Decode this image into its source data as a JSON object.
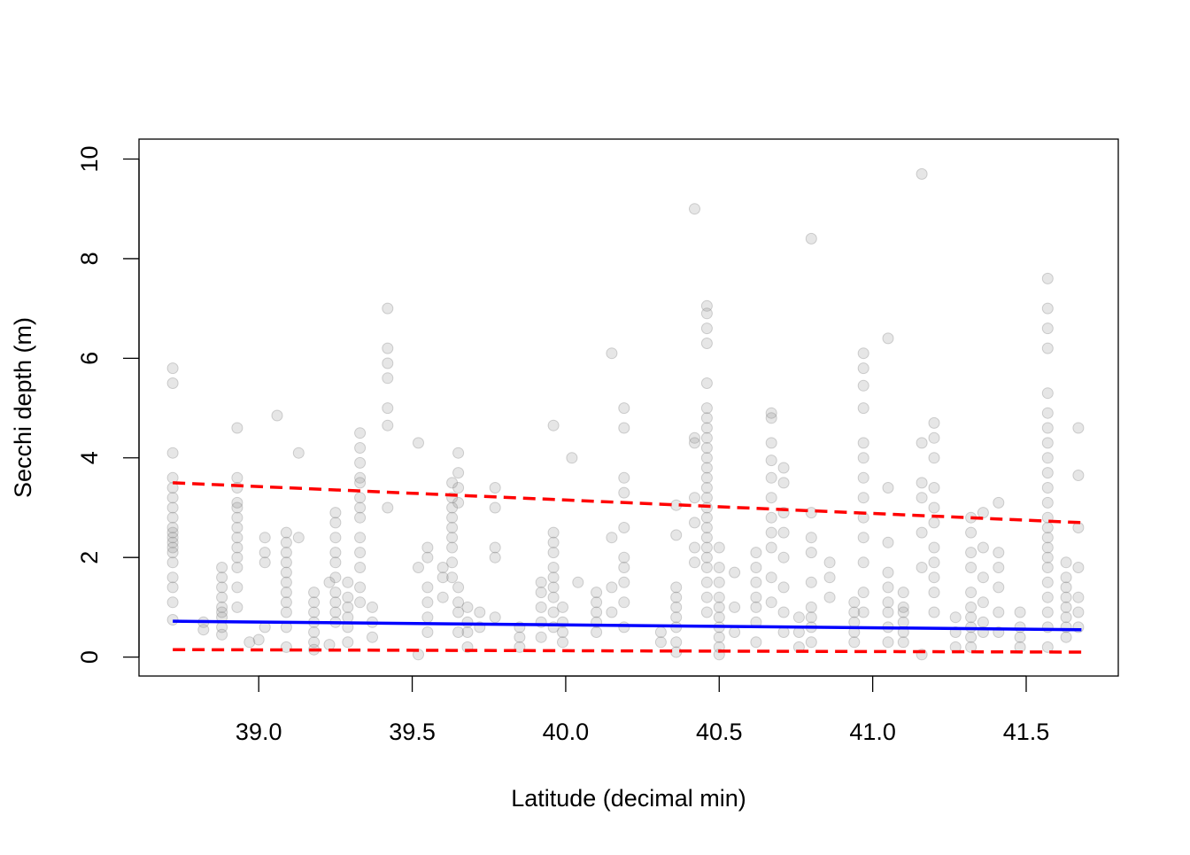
{
  "chart_data": {
    "type": "scatter",
    "title": "",
    "xlabel": "Latitude (decimal min)",
    "ylabel": "Secchi depth (m)",
    "xlim": [
      38.61,
      41.8
    ],
    "ylim": [
      -0.38,
      10.4
    ],
    "x_ticks": [
      39.0,
      39.5,
      40.0,
      40.5,
      41.0,
      41.5
    ],
    "x_tick_labels": [
      "39.0",
      "39.5",
      "40.0",
      "40.5",
      "41.0",
      "41.5"
    ],
    "y_ticks": [
      0,
      2,
      4,
      6,
      8,
      10
    ],
    "y_tick_labels": [
      "0",
      "2",
      "4",
      "6",
      "8",
      "10"
    ],
    "grid": false,
    "colors": {
      "points": "#808080",
      "fit": "#0000ff",
      "bounds": "#ff0000",
      "axis": "#000000"
    },
    "series": [
      {
        "kind": "points",
        "x": [
          38.72,
          38.72,
          38.72,
          38.72,
          38.72,
          38.72,
          38.72,
          38.72,
          38.72,
          38.72,
          38.72,
          38.72,
          38.72,
          38.72,
          38.72,
          38.72,
          38.72,
          38.72,
          38.72,
          38.82,
          38.82,
          38.88,
          38.88,
          38.88,
          38.88,
          38.88,
          38.88,
          38.88,
          38.88,
          38.88,
          38.93,
          38.93,
          38.93,
          38.93,
          38.93,
          38.93,
          38.93,
          38.93,
          38.93,
          38.93,
          38.93,
          38.93,
          38.93,
          38.97,
          39.0,
          39.02,
          39.02,
          39.02,
          39.02,
          39.06,
          39.09,
          39.09,
          39.09,
          39.09,
          39.09,
          39.09,
          39.09,
          39.09,
          39.09,
          39.09,
          39.09,
          39.13,
          39.13,
          39.18,
          39.18,
          39.18,
          39.18,
          39.18,
          39.18,
          39.18,
          39.23,
          39.23,
          39.25,
          39.25,
          39.25,
          39.25,
          39.25,
          39.25,
          39.25,
          39.25,
          39.25,
          39.25,
          39.29,
          39.29,
          39.29,
          39.29,
          39.29,
          39.29,
          39.33,
          39.33,
          39.33,
          39.33,
          39.33,
          39.33,
          39.33,
          39.33,
          39.33,
          39.33,
          39.33,
          39.33,
          39.33,
          39.37,
          39.37,
          39.37,
          39.42,
          39.42,
          39.42,
          39.42,
          39.42,
          39.42,
          39.42,
          39.52,
          39.52,
          39.52,
          39.55,
          39.55,
          39.55,
          39.55,
          39.55,
          39.55,
          39.6,
          39.6,
          39.6,
          39.63,
          39.63,
          39.63,
          39.63,
          39.63,
          39.63,
          39.63,
          39.63,
          39.63,
          39.65,
          39.65,
          39.65,
          39.65,
          39.65,
          39.65,
          39.65,
          39.65,
          39.68,
          39.68,
          39.68,
          39.68,
          39.72,
          39.72,
          39.77,
          39.77,
          39.77,
          39.77,
          39.77,
          39.85,
          39.85,
          39.85,
          39.92,
          39.92,
          39.92,
          39.92,
          39.92,
          39.96,
          39.96,
          39.96,
          39.96,
          39.96,
          39.96,
          39.96,
          39.96,
          39.96,
          39.96,
          39.99,
          39.99,
          39.99,
          39.99,
          40.02,
          40.04,
          40.1,
          40.1,
          40.1,
          40.1,
          40.1,
          40.15,
          40.15,
          40.15,
          40.15,
          40.19,
          40.19,
          40.19,
          40.19,
          40.19,
          40.19,
          40.19,
          40.19,
          40.19,
          40.19,
          40.31,
          40.31,
          40.36,
          40.36,
          40.36,
          40.36,
          40.36,
          40.36,
          40.36,
          40.36,
          40.36,
          40.42,
          40.42,
          40.42,
          40.42,
          40.42,
          40.42,
          40.42,
          40.46,
          40.46,
          40.46,
          40.46,
          40.46,
          40.46,
          40.46,
          40.46,
          40.46,
          40.46,
          40.46,
          40.46,
          40.46,
          40.46,
          40.46,
          40.46,
          40.46,
          40.46,
          40.46,
          40.46,
          40.46,
          40.46,
          40.46,
          40.46,
          40.46,
          40.5,
          40.5,
          40.5,
          40.5,
          40.5,
          40.5,
          40.5,
          40.5,
          40.5,
          40.5,
          40.55,
          40.55,
          40.55,
          40.62,
          40.62,
          40.62,
          40.62,
          40.62,
          40.62,
          40.62,
          40.67,
          40.67,
          40.67,
          40.67,
          40.67,
          40.67,
          40.67,
          40.67,
          40.67,
          40.67,
          40.67,
          40.71,
          40.71,
          40.71,
          40.71,
          40.71,
          40.71,
          40.71,
          40.71,
          40.76,
          40.76,
          40.76,
          40.8,
          40.8,
          40.8,
          40.8,
          40.8,
          40.8,
          40.8,
          40.8,
          40.8,
          40.86,
          40.86,
          40.86,
          40.94,
          40.94,
          40.94,
          40.94,
          40.94,
          40.97,
          40.97,
          40.97,
          40.97,
          40.97,
          40.97,
          40.97,
          40.97,
          40.97,
          40.97,
          40.97,
          40.97,
          40.97,
          41.05,
          41.05,
          41.05,
          41.05,
          41.05,
          41.05,
          41.05,
          41.05,
          41.05,
          41.1,
          41.1,
          41.1,
          41.1,
          41.1,
          41.1,
          41.16,
          41.16,
          41.16,
          41.16,
          41.16,
          41.16,
          41.16,
          41.2,
          41.2,
          41.2,
          41.2,
          41.2,
          41.2,
          41.2,
          41.2,
          41.2,
          41.2,
          41.2,
          41.27,
          41.27,
          41.27,
          41.32,
          41.32,
          41.32,
          41.32,
          41.32,
          41.32,
          41.32,
          41.32,
          41.32,
          41.32,
          41.36,
          41.36,
          41.36,
          41.36,
          41.36,
          41.36,
          41.41,
          41.41,
          41.41,
          41.41,
          41.41,
          41.41,
          41.48,
          41.48,
          41.48,
          41.48,
          41.57,
          41.57,
          41.57,
          41.57,
          41.57,
          41.57,
          41.57,
          41.57,
          41.57,
          41.57,
          41.57,
          41.57,
          41.57,
          41.57,
          41.57,
          41.57,
          41.57,
          41.57,
          41.57,
          41.57,
          41.57,
          41.57,
          41.57,
          41.63,
          41.63,
          41.63,
          41.63,
          41.63,
          41.63,
          41.63,
          41.63,
          41.67,
          41.67,
          41.67,
          41.67,
          41.67,
          41.67,
          41.67
        ],
        "y": [
          5.8,
          5.5,
          4.1,
          3.6,
          3.4,
          3.2,
          3.0,
          2.8,
          2.6,
          2.5,
          2.4,
          2.3,
          2.2,
          2.1,
          1.9,
          1.6,
          1.4,
          1.1,
          0.75,
          0.7,
          0.55,
          1.8,
          1.6,
          1.4,
          1.2,
          1.0,
          0.9,
          0.8,
          0.6,
          0.45,
          4.6,
          3.6,
          3.4,
          3.1,
          3.0,
          2.8,
          2.6,
          2.4,
          2.2,
          2.0,
          1.8,
          1.4,
          1.0,
          0.3,
          0.35,
          2.4,
          2.1,
          1.9,
          0.6,
          4.85,
          2.5,
          2.3,
          2.1,
          1.9,
          1.7,
          1.5,
          1.3,
          1.1,
          0.9,
          0.6,
          0.2,
          4.1,
          2.4,
          1.3,
          1.1,
          0.9,
          0.7,
          0.5,
          0.3,
          0.15,
          1.5,
          0.25,
          2.9,
          2.7,
          2.4,
          2.1,
          1.9,
          1.6,
          1.3,
          1.1,
          0.9,
          0.7,
          1.5,
          1.2,
          1.0,
          0.8,
          0.6,
          0.3,
          4.5,
          4.2,
          3.9,
          3.6,
          3.5,
          3.2,
          3.0,
          2.8,
          2.4,
          2.1,
          1.8,
          1.4,
          1.1,
          1.0,
          0.7,
          0.4,
          7.0,
          6.2,
          5.9,
          5.6,
          5.0,
          4.65,
          3.0,
          4.3,
          1.8,
          0.05,
          2.2,
          2.0,
          1.4,
          1.1,
          0.8,
          0.5,
          1.8,
          1.6,
          1.2,
          3.5,
          3.2,
          3.0,
          2.8,
          2.6,
          2.4,
          2.2,
          1.9,
          1.6,
          4.1,
          3.7,
          3.4,
          3.1,
          1.4,
          1.1,
          0.9,
          0.5,
          1.0,
          0.7,
          0.5,
          0.2,
          0.9,
          0.6,
          3.4,
          3.0,
          2.2,
          2.0,
          0.8,
          0.6,
          0.4,
          0.2,
          1.5,
          1.3,
          1.0,
          0.7,
          0.4,
          4.65,
          2.5,
          2.3,
          2.1,
          1.8,
          1.6,
          1.4,
          1.2,
          0.9,
          0.6,
          1.0,
          0.7,
          0.5,
          0.3,
          4.0,
          1.5,
          1.3,
          1.1,
          0.9,
          0.7,
          0.5,
          6.1,
          2.4,
          1.4,
          0.9,
          5.0,
          4.6,
          3.6,
          3.3,
          2.6,
          2.0,
          1.8,
          1.5,
          1.1,
          0.6,
          0.5,
          0.3,
          3.05,
          2.45,
          1.4,
          1.2,
          1.0,
          0.8,
          0.6,
          0.3,
          0.1,
          9.0,
          4.4,
          4.3,
          3.2,
          2.7,
          2.2,
          1.9,
          7.05,
          6.9,
          6.6,
          6.3,
          5.5,
          5.0,
          4.8,
          4.6,
          4.4,
          4.2,
          4.0,
          3.8,
          3.6,
          3.4,
          3.2,
          3.0,
          2.8,
          2.6,
          2.4,
          2.2,
          2.0,
          1.8,
          1.5,
          1.2,
          0.9,
          2.2,
          1.8,
          1.5,
          1.2,
          1.0,
          0.8,
          0.6,
          0.4,
          0.2,
          0.05,
          1.7,
          1.0,
          0.5,
          2.1,
          1.8,
          1.5,
          1.2,
          1.0,
          0.7,
          0.3,
          4.9,
          4.8,
          4.3,
          3.95,
          3.6,
          3.2,
          2.8,
          2.5,
          2.2,
          1.6,
          1.1,
          3.8,
          3.5,
          2.9,
          2.5,
          2.0,
          1.4,
          0.9,
          0.5,
          0.8,
          0.5,
          0.2,
          8.4,
          2.9,
          2.4,
          2.1,
          1.5,
          1.0,
          0.8,
          0.6,
          0.3,
          1.9,
          1.6,
          1.2,
          1.1,
          0.9,
          0.7,
          0.5,
          0.3,
          6.1,
          5.8,
          5.45,
          5.0,
          4.3,
          4.0,
          3.6,
          3.2,
          2.8,
          2.4,
          1.9,
          1.3,
          0.9,
          6.4,
          3.4,
          2.3,
          1.7,
          1.4,
          1.1,
          0.9,
          0.6,
          0.3,
          1.3,
          1.0,
          0.9,
          0.7,
          0.5,
          0.3,
          9.7,
          4.3,
          3.5,
          3.2,
          2.5,
          1.8,
          0.05,
          4.7,
          4.4,
          4.0,
          3.4,
          3.0,
          2.7,
          2.2,
          1.9,
          1.6,
          1.3,
          0.9,
          0.8,
          0.5,
          0.2,
          2.8,
          2.5,
          2.1,
          1.8,
          1.3,
          1.0,
          0.8,
          0.6,
          0.4,
          0.2,
          2.9,
          2.2,
          1.6,
          1.1,
          0.7,
          0.5,
          3.1,
          2.1,
          1.8,
          1.4,
          0.9,
          0.5,
          0.9,
          0.6,
          0.4,
          0.2,
          7.6,
          7.0,
          6.6,
          6.2,
          5.3,
          4.9,
          4.6,
          4.3,
          4.0,
          3.7,
          3.4,
          3.1,
          2.8,
          2.6,
          2.4,
          2.2,
          2.0,
          1.8,
          1.5,
          1.2,
          0.9,
          0.6,
          0.2,
          1.9,
          1.6,
          1.4,
          1.2,
          1.0,
          0.8,
          0.6,
          0.4,
          4.6,
          3.65,
          2.6,
          1.8,
          1.2,
          0.9,
          0.6
        ]
      },
      {
        "kind": "fit",
        "name": "",
        "x": [
          38.72,
          41.68
        ],
        "y": [
          0.72,
          0.55
        ]
      },
      {
        "kind": "upper",
        "name": "",
        "x": [
          38.72,
          41.68
        ],
        "y": [
          3.5,
          2.7
        ]
      },
      {
        "kind": "lower",
        "name": "",
        "x": [
          38.72,
          41.68
        ],
        "y": [
          0.15,
          0.1
        ]
      }
    ]
  }
}
